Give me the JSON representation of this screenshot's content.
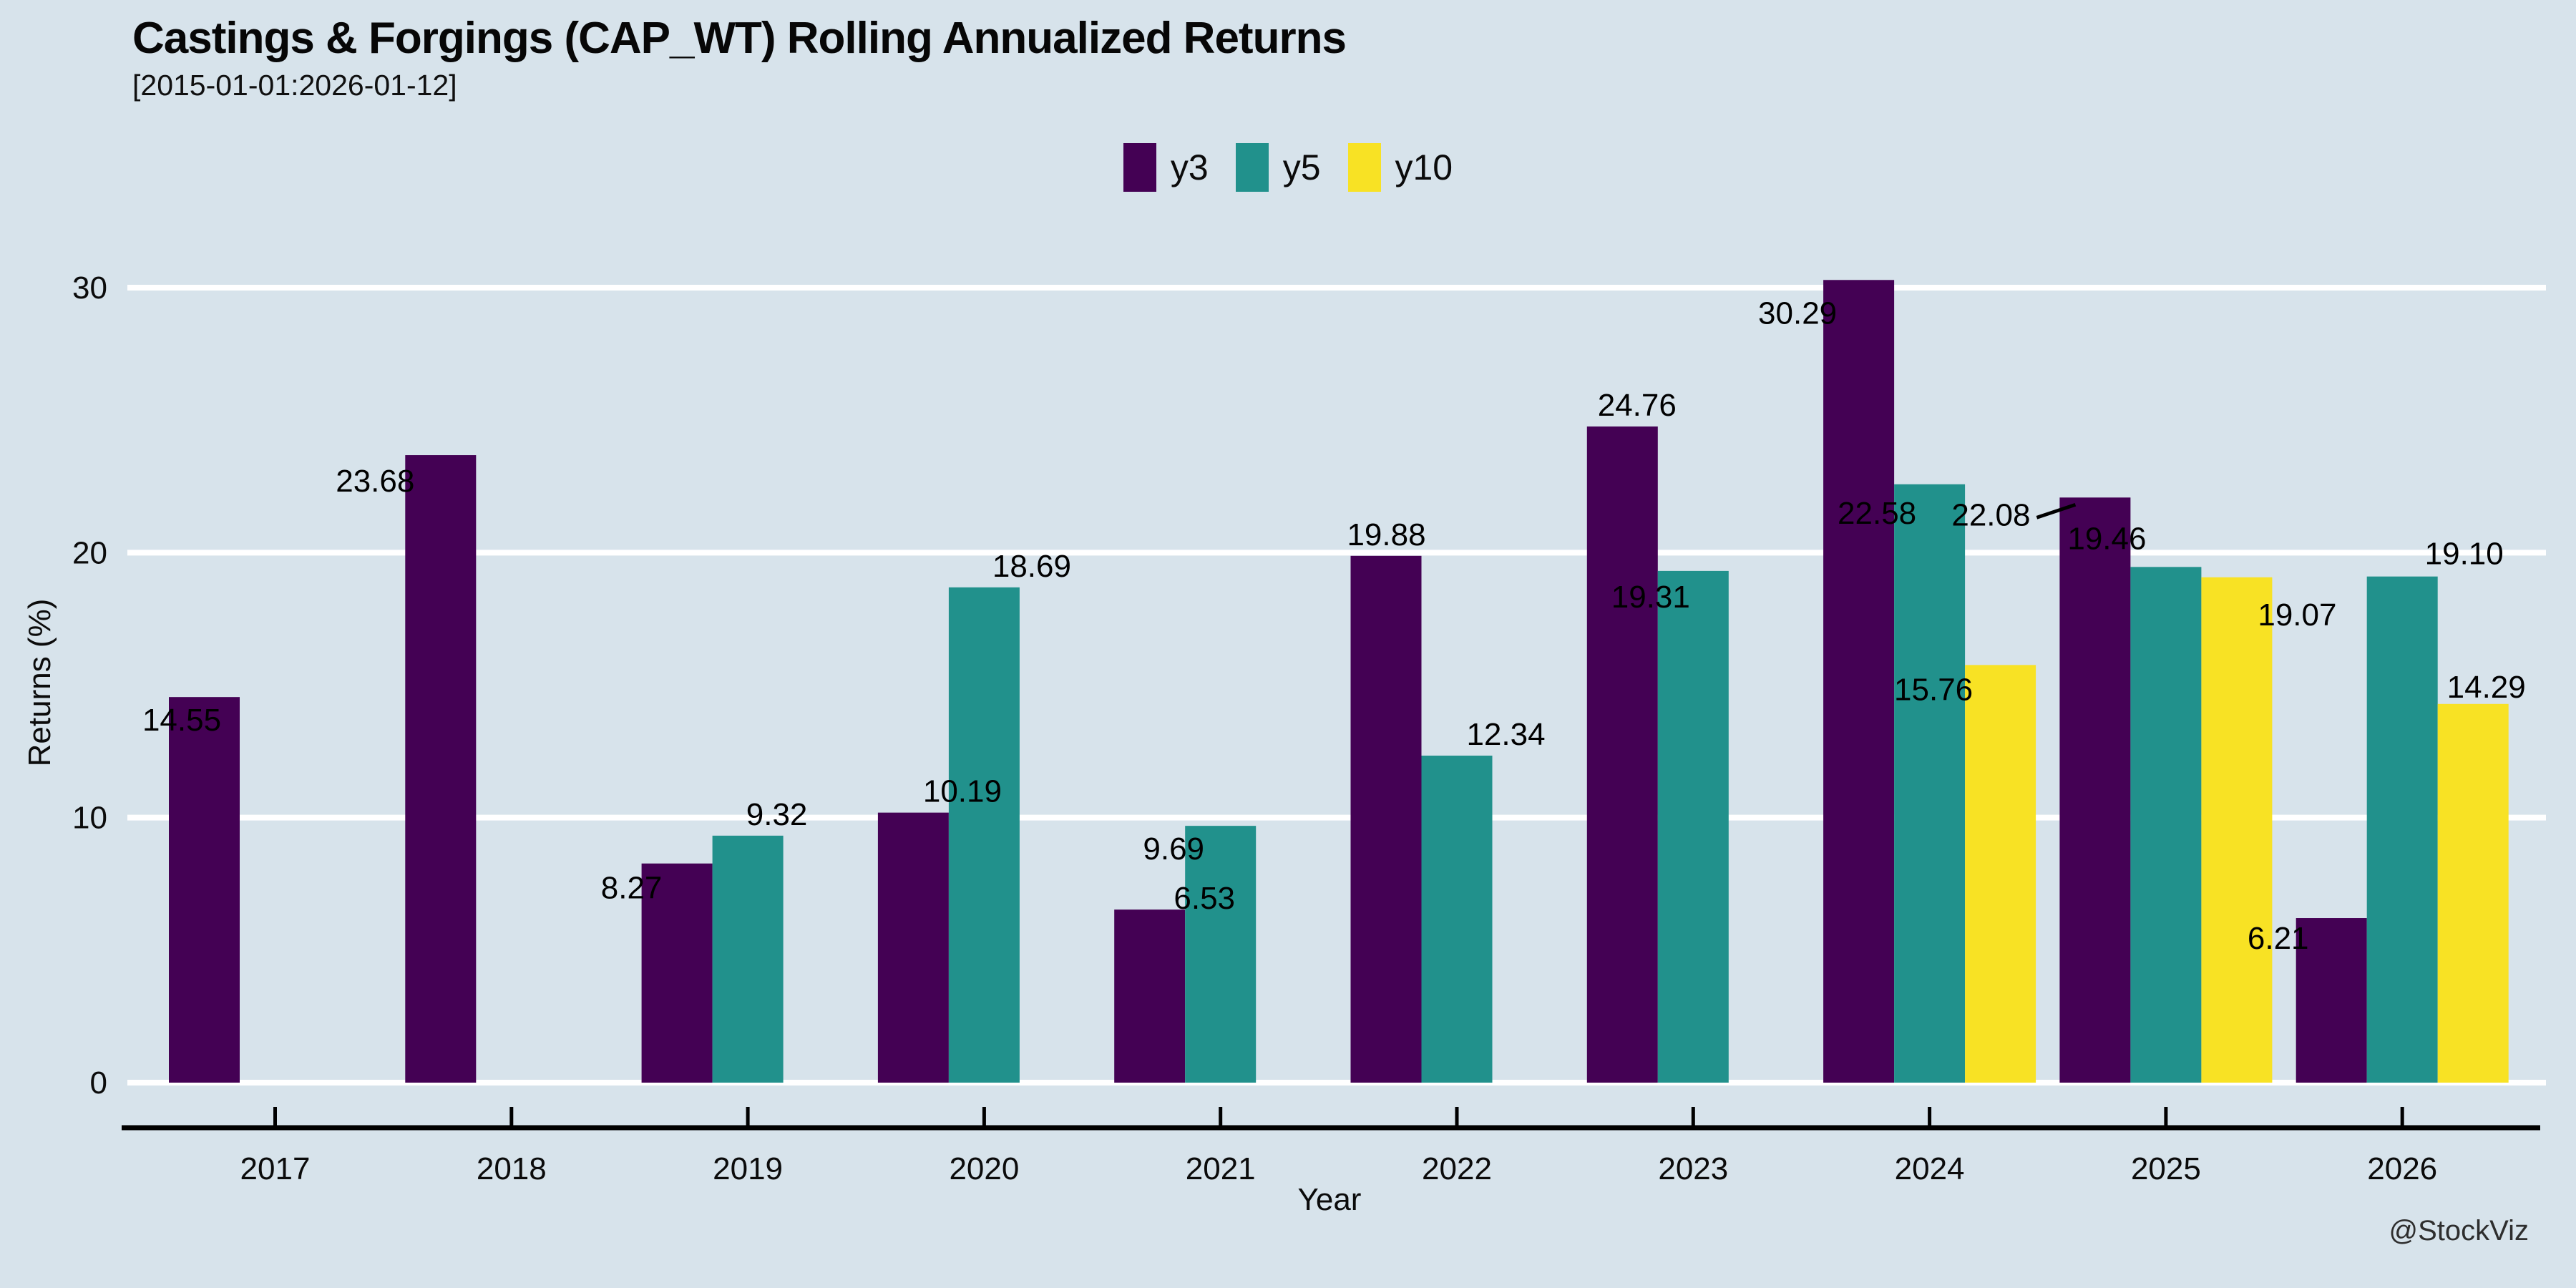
{
  "chart_data": {
    "type": "bar",
    "title": "Castings & Forgings (CAP_WT) Rolling Annualized Returns",
    "subtitle": "[2015-01-01:2026-01-12]",
    "xlabel": "Year",
    "ylabel": "Returns (%)",
    "watermark": "@StockViz",
    "background_color": "#d7e3eb",
    "grid_color": "#ffffff",
    "axis_color": "#000000",
    "label_color": "#000000",
    "legend_position": "top-center",
    "grid": "horizontal-white",
    "categories": [
      "2017",
      "2018",
      "2019",
      "2020",
      "2021",
      "2022",
      "2023",
      "2024",
      "2025",
      "2026"
    ],
    "ylim": [
      0,
      30
    ],
    "yticks": [
      "0",
      "10",
      "20",
      "30"
    ],
    "series": [
      {
        "name": "y3",
        "color": "#440154",
        "values": [
          14.55,
          23.68,
          8.27,
          10.19,
          6.53,
          19.88,
          24.76,
          30.29,
          22.08,
          6.21
        ],
        "labels": [
          "14.55",
          "23.68",
          "8.27",
          "10.19",
          "6.53",
          "19.88",
          "24.76",
          "30.29",
          "22.08",
          "6.21"
        ],
        "label_offsets": [
          [
            18,
            32
          ],
          [
            -42,
            36
          ],
          [
            -14,
            34
          ],
          [
            118,
            -30
          ],
          [
            126,
            -16
          ],
          [
            50,
            -30
          ],
          [
            70,
            -30
          ],
          [
            -36,
            46
          ],
          [
            -96,
            24
          ],
          [
            -25,
            28
          ]
        ],
        "label_leader": [
          false,
          false,
          false,
          false,
          false,
          false,
          false,
          false,
          true,
          false
        ]
      },
      {
        "name": "y5",
        "color": "#21918c",
        "values": [
          null,
          null,
          9.32,
          18.69,
          9.69,
          12.34,
          19.31,
          22.58,
          19.46,
          19.1
        ],
        "labels": [
          null,
          null,
          "9.32",
          "18.69",
          "9.69",
          "12.34",
          "19.31",
          "22.58",
          "19.46",
          "19.10"
        ],
        "label_offsets": [
          null,
          null,
          [
            90,
            -30
          ],
          [
            116,
            -30
          ],
          [
            -16,
            32
          ],
          [
            118,
            -30
          ],
          [
            -10,
            36
          ],
          [
            -24,
            40
          ],
          [
            -33,
            -40
          ],
          [
            136,
            -32
          ]
        ],
        "label_leader": [
          false,
          false,
          false,
          false,
          false,
          false,
          false,
          false,
          false,
          false
        ]
      },
      {
        "name": "y10",
        "color": "#f8e224",
        "values": [
          null,
          null,
          null,
          null,
          null,
          null,
          null,
          15.76,
          19.07,
          14.29
        ],
        "labels": [
          null,
          null,
          null,
          null,
          null,
          null,
          null,
          "15.76",
          "19.07",
          "14.29"
        ],
        "label_offsets": [
          null,
          null,
          null,
          null,
          null,
          null,
          null,
          [
            -44,
            34
          ],
          [
            134,
            52
          ],
          [
            68,
            -24
          ]
        ],
        "label_leader": [
          false,
          false,
          false,
          false,
          false,
          false,
          false,
          false,
          false,
          false
        ]
      }
    ]
  }
}
